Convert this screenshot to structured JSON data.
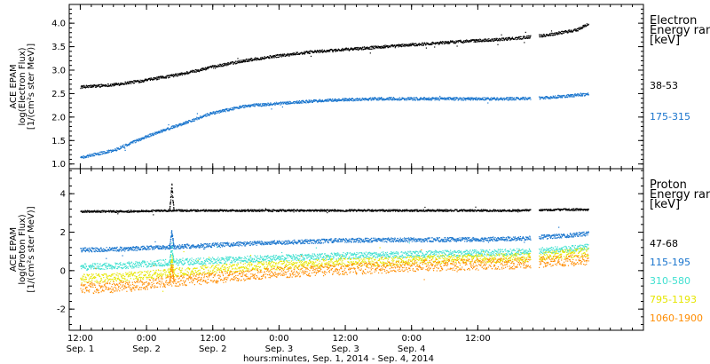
{
  "chart_data": [
    {
      "type": "scatter",
      "panel": "electron",
      "ylabel_lines": [
        "ACE EPAM",
        "log(Electron Flux)",
        "[1/(cm²s ster MeV)]"
      ],
      "ylim": [
        0.9,
        4.4
      ],
      "yticks": [
        1.0,
        1.5,
        2.0,
        2.5,
        3.0,
        3.5,
        4.0
      ],
      "ytick_labels": [
        "1.0",
        "1.5",
        "2.0",
        "2.5",
        "3.0",
        "3.5",
        "4.0"
      ],
      "legend_title_lines": [
        "Electron",
        "Energy range",
        "[keV]"
      ],
      "gap": [
        81.5,
        83.0
      ],
      "series": [
        {
          "name": "38-53",
          "color": "#000000",
          "x": [
            0,
            6,
            12,
            18,
            24,
            30,
            36,
            42,
            48,
            54,
            60,
            66,
            72,
            78,
            84,
            90,
            92
          ],
          "y": [
            2.65,
            2.7,
            2.8,
            2.92,
            3.08,
            3.22,
            3.32,
            3.4,
            3.45,
            3.5,
            3.55,
            3.6,
            3.64,
            3.68,
            3.75,
            3.87,
            4.0
          ]
        },
        {
          "name": "175-315",
          "color": "#1874cd",
          "x": [
            0,
            6,
            12,
            18,
            24,
            30,
            36,
            42,
            48,
            54,
            60,
            66,
            72,
            78,
            84,
            90,
            92
          ],
          "y": [
            1.15,
            1.3,
            1.6,
            1.85,
            2.1,
            2.25,
            2.3,
            2.35,
            2.38,
            2.4,
            2.4,
            2.4,
            2.4,
            2.4,
            2.42,
            2.48,
            2.5
          ]
        }
      ]
    },
    {
      "type": "scatter",
      "panel": "proton",
      "ylabel_lines": [
        "ACE EPAM",
        "log(Proton Flux)",
        "[1/(cm²s ster MeV)]"
      ],
      "ylim": [
        -3.1,
        5.3
      ],
      "yticks": [
        -2,
        0,
        2,
        4
      ],
      "ytick_labels": [
        "-2",
        "0",
        "2",
        "4"
      ],
      "legend_title_lines": [
        "Proton",
        "Energy range",
        "[keV]"
      ],
      "gap": [
        81.5,
        83.0
      ],
      "series": [
        {
          "name": "47-68",
          "color": "#000000",
          "x": [
            0,
            8,
            16,
            24,
            32,
            40,
            48,
            56,
            64,
            72,
            80,
            88,
            92
          ],
          "y": [
            3.1,
            3.1,
            3.15,
            3.15,
            3.15,
            3.15,
            3.15,
            3.15,
            3.15,
            3.15,
            3.15,
            3.2,
            3.2
          ]
        },
        {
          "name": "115-195",
          "color": "#1874cd",
          "x": [
            0,
            8,
            16,
            24,
            32,
            40,
            48,
            56,
            64,
            72,
            80,
            88,
            92
          ],
          "y": [
            1.1,
            1.15,
            1.25,
            1.35,
            1.45,
            1.52,
            1.6,
            1.62,
            1.63,
            1.65,
            1.7,
            1.85,
            1.95
          ]
        },
        {
          "name": "310-580",
          "color": "#40e0d0",
          "x": [
            0,
            8,
            16,
            24,
            32,
            40,
            48,
            56,
            64,
            72,
            80,
            88,
            92
          ],
          "y": [
            0.2,
            0.3,
            0.45,
            0.55,
            0.65,
            0.72,
            0.8,
            0.85,
            0.9,
            0.95,
            1.0,
            1.15,
            1.25
          ]
        },
        {
          "name": "795-1193",
          "color": "#e6e600",
          "x": [
            0,
            8,
            16,
            24,
            32,
            40,
            48,
            56,
            64,
            72,
            80,
            88,
            92
          ],
          "y": [
            -0.4,
            -0.3,
            -0.1,
            0.1,
            0.25,
            0.35,
            0.45,
            0.5,
            0.6,
            0.65,
            0.7,
            0.9,
            1.0
          ]
        },
        {
          "name": "1060-1900",
          "color": "#ff8c00",
          "x": [
            0,
            8,
            16,
            24,
            32,
            40,
            48,
            56,
            64,
            72,
            80,
            88,
            92
          ],
          "y": [
            -0.9,
            -0.8,
            -0.55,
            -0.35,
            -0.15,
            0.0,
            0.1,
            0.2,
            0.3,
            0.35,
            0.42,
            0.55,
            0.6
          ]
        }
      ],
      "spike": {
        "x": 16.5,
        "peak": 4.7
      }
    }
  ],
  "xaxis": {
    "xlim": [
      -2,
      102
    ],
    "xlabel": "hours:minutes, Sep.  1, 2014 - Sep.  4, 2014",
    "ticks": [
      {
        "x": 0,
        "time": "12:00",
        "date": "Sep. 1"
      },
      {
        "x": 12,
        "time": "0:00",
        "date": "Sep. 2"
      },
      {
        "x": 24,
        "time": "12:00",
        "date": "Sep. 2"
      },
      {
        "x": 36,
        "time": "0:00",
        "date": "Sep. 3"
      },
      {
        "x": 48,
        "time": "12:00",
        "date": "Sep. 3"
      },
      {
        "x": 60,
        "time": "0:00",
        "date": "Sep. 4"
      },
      {
        "x": 72,
        "time": "12:00",
        "date": ""
      }
    ]
  }
}
